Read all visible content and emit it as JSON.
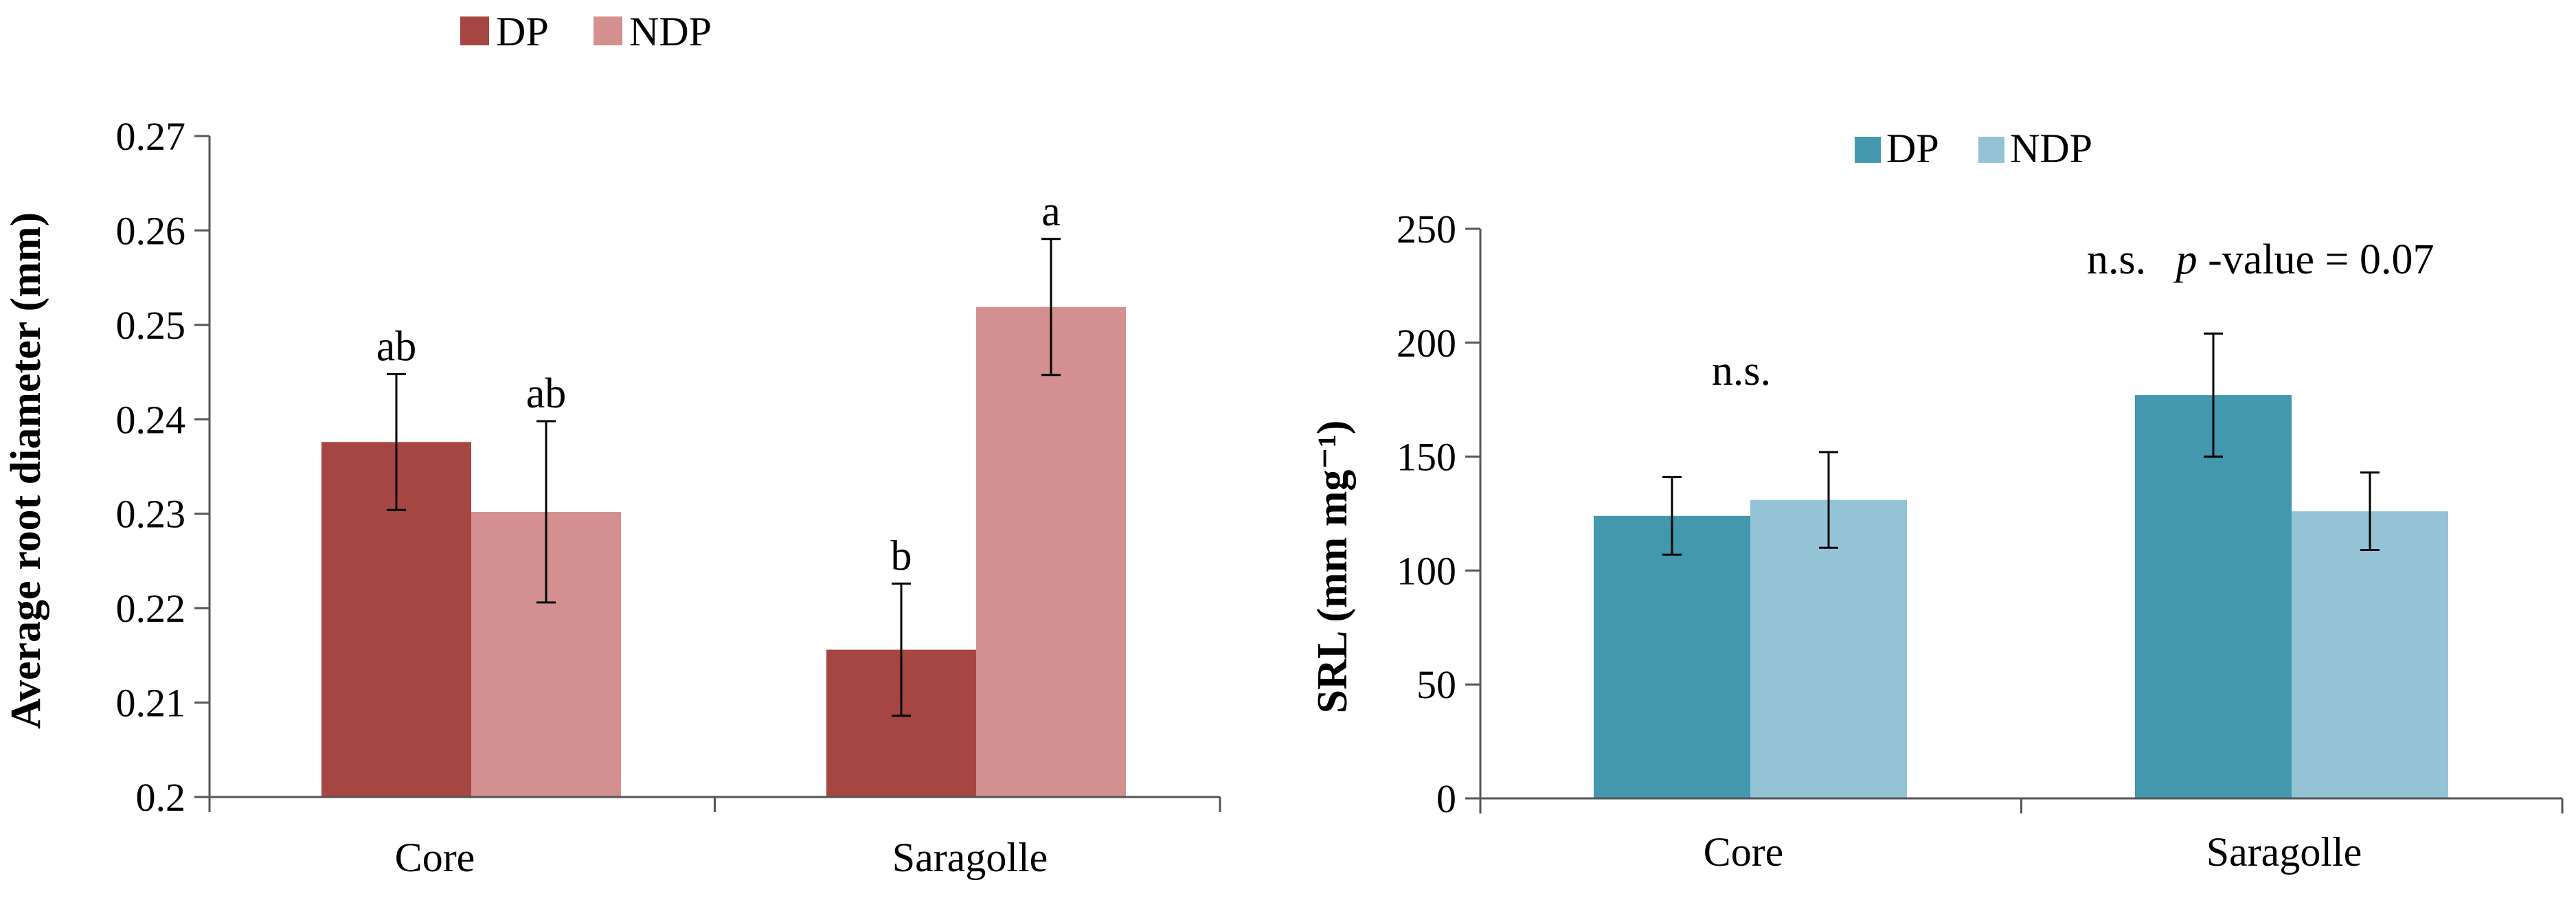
{
  "chart_data": [
    {
      "id": "left",
      "type": "bar",
      "title": "",
      "xlabel": "",
      "ylabel": "Average root diameter (mm)",
      "ylim": [
        0.2,
        0.27
      ],
      "yticks": [
        0.2,
        0.21,
        0.22,
        0.23,
        0.24,
        0.25,
        0.26,
        0.27
      ],
      "ytick_labels": [
        "0.2",
        "0.21",
        "0.22",
        "0.23",
        "0.24",
        "0.25",
        "0.26",
        "0.27"
      ],
      "categories": [
        "Core",
        "Saragolle"
      ],
      "series": [
        {
          "name": "DP",
          "color": "#A64643",
          "values": [
            0.2376,
            0.2156
          ],
          "errors": [
            0.0072,
            0.007
          ],
          "labels": [
            "ab",
            "b"
          ]
        },
        {
          "name": "NDP",
          "color": "#D49090",
          "values": [
            0.2302,
            0.2519
          ],
          "errors": [
            0.0096,
            0.0072
          ],
          "labels": [
            "ab",
            "a"
          ]
        }
      ],
      "legend": "top-center",
      "grid": false
    },
    {
      "id": "right",
      "type": "bar",
      "title": "",
      "xlabel": "",
      "ylabel": "SRL (mm mg⁻¹)",
      "ylim": [
        0,
        250
      ],
      "yticks": [
        0,
        50,
        100,
        150,
        200,
        250
      ],
      "ytick_labels": [
        "0",
        "50",
        "100",
        "150",
        "200",
        "250"
      ],
      "categories": [
        "Core",
        "Saragolle"
      ],
      "series": [
        {
          "name": "DP",
          "color": "#4398AE",
          "values": [
            124,
            177
          ],
          "errors": [
            17,
            27
          ]
        },
        {
          "name": "NDP",
          "color": "#94C3D6",
          "values": [
            131,
            126
          ],
          "errors": [
            21,
            17
          ]
        }
      ],
      "annotations": {
        "core": "n.s.",
        "saragolle_prefix": "n.s.",
        "saragolle_pvalue_italic": "p",
        "saragolle_pvalue_rest": "-value  = 0.07"
      },
      "legend": "top-center",
      "grid": false
    }
  ]
}
